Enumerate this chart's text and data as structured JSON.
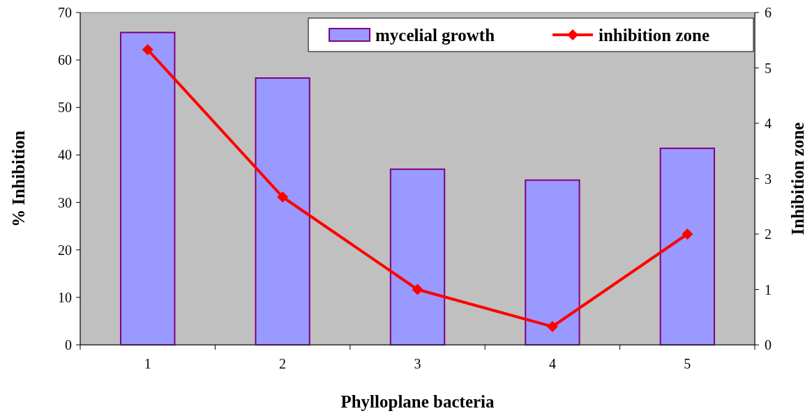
{
  "chart_data": {
    "type": "bar",
    "xlabel": "Phylloplane bacteria",
    "ylabel": "% Inhibition",
    "y2label": "Inhibition zone",
    "categories": [
      "1",
      "2",
      "3",
      "4",
      "5"
    ],
    "series": [
      {
        "name": "mycelial growth",
        "color": "#9999ff",
        "values": [
          65.8,
          56.2,
          37.0,
          34.7,
          41.4
        ]
      },
      {
        "name": "inhibition zone",
        "type": "line",
        "axis": "y2",
        "color": "#ff0000",
        "values": [
          5.33,
          2.67,
          1,
          0.33,
          2
        ]
      }
    ],
    "ylim": [
      0,
      70
    ],
    "yticks": [
      0,
      10,
      20,
      30,
      40,
      50,
      60,
      70
    ],
    "y2lim": [
      0,
      6
    ],
    "y2ticks": [
      0,
      1,
      2,
      3,
      4,
      5,
      6
    ],
    "grid": false,
    "legend": "top right",
    "marker": "diamond",
    "line_style": "solid"
  }
}
